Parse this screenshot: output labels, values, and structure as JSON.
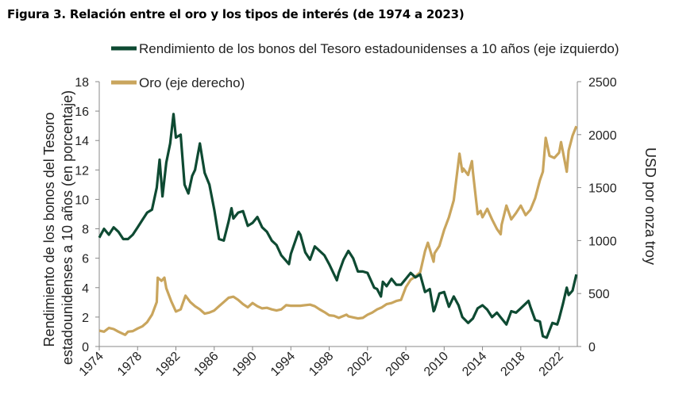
{
  "figure_title": "Figura 3. Relación entre el oro y los tipos de interés (de 1974 a 2023)",
  "chart_data": {
    "type": "line",
    "title": "Figura 3. Relación entre el oro y los tipos de interés (de 1974 a 2023)",
    "xlabel": "",
    "xlim": [
      1974,
      2023.9
    ],
    "x_ticks": [
      "1974",
      "1978",
      "1982",
      "1986",
      "1990",
      "1994",
      "1998",
      "2002",
      "2006",
      "2010",
      "2014",
      "2018",
      "2022"
    ],
    "y_left": {
      "label": "Rendimiento de los bonos del Tesoro estadounidenses a 10 años (en porcentaje)",
      "lim": [
        0,
        18
      ],
      "ticks": [
        "0",
        "2",
        "4",
        "6",
        "8",
        "10",
        "12",
        "14",
        "16",
        "18"
      ]
    },
    "y_right": {
      "label": "USD por onza troy",
      "lim": [
        0,
        2500
      ],
      "ticks": [
        "0",
        "500",
        "1000",
        "1500",
        "2000",
        "2500"
      ]
    },
    "legend_position": "top",
    "series": [
      {
        "name": "Rendimiento de los bonos del Tesoro estadounidenses a 10 años (eje izquierdo)",
        "axis": "left",
        "color": "#0e4a32",
        "points": [
          [
            1974,
            7.4
          ],
          [
            1974.5,
            8.0
          ],
          [
            1975,
            7.6
          ],
          [
            1975.5,
            8.1
          ],
          [
            1976,
            7.8
          ],
          [
            1976.5,
            7.3
          ],
          [
            1977,
            7.3
          ],
          [
            1977.5,
            7.6
          ],
          [
            1978,
            8.1
          ],
          [
            1978.5,
            8.6
          ],
          [
            1979,
            9.1
          ],
          [
            1979.5,
            9.3
          ],
          [
            1980,
            10.8
          ],
          [
            1980.3,
            12.7
          ],
          [
            1980.6,
            10.2
          ],
          [
            1981,
            12.5
          ],
          [
            1981.4,
            13.8
          ],
          [
            1981.75,
            15.8
          ],
          [
            1982,
            14.2
          ],
          [
            1982.5,
            14.4
          ],
          [
            1982.9,
            11.0
          ],
          [
            1983.3,
            10.4
          ],
          [
            1983.7,
            11.6
          ],
          [
            1984,
            12.0
          ],
          [
            1984.5,
            13.8
          ],
          [
            1985,
            11.8
          ],
          [
            1985.5,
            11.0
          ],
          [
            1986,
            9.3
          ],
          [
            1986.5,
            7.3
          ],
          [
            1987,
            7.2
          ],
          [
            1987.5,
            8.5
          ],
          [
            1987.8,
            9.4
          ],
          [
            1988,
            8.7
          ],
          [
            1988.5,
            9.1
          ],
          [
            1989,
            9.2
          ],
          [
            1989.5,
            8.2
          ],
          [
            1990,
            8.4
          ],
          [
            1990.5,
            8.8
          ],
          [
            1991,
            8.1
          ],
          [
            1991.5,
            7.8
          ],
          [
            1992,
            7.2
          ],
          [
            1992.5,
            6.9
          ],
          [
            1993,
            6.2
          ],
          [
            1993.8,
            5.6
          ],
          [
            1994,
            6.3
          ],
          [
            1994.8,
            7.8
          ],
          [
            1995,
            7.6
          ],
          [
            1995.5,
            6.4
          ],
          [
            1996,
            5.9
          ],
          [
            1996.5,
            6.8
          ],
          [
            1997,
            6.5
          ],
          [
            1997.5,
            6.2
          ],
          [
            1998,
            5.6
          ],
          [
            1998.8,
            4.5
          ],
          [
            1999,
            5.0
          ],
          [
            1999.5,
            5.9
          ],
          [
            2000,
            6.5
          ],
          [
            2000.5,
            6.0
          ],
          [
            2001,
            5.1
          ],
          [
            2001.5,
            5.1
          ],
          [
            2002,
            5.0
          ],
          [
            2002.7,
            4.0
          ],
          [
            2003,
            3.9
          ],
          [
            2003.4,
            3.4
          ],
          [
            2003.6,
            4.4
          ],
          [
            2004,
            4.1
          ],
          [
            2004.5,
            4.6
          ],
          [
            2005,
            4.2
          ],
          [
            2005.5,
            4.2
          ],
          [
            2006,
            4.6
          ],
          [
            2006.5,
            5.0
          ],
          [
            2007,
            4.7
          ],
          [
            2007.5,
            4.9
          ],
          [
            2008,
            3.7
          ],
          [
            2008.5,
            3.9
          ],
          [
            2008.9,
            2.4
          ],
          [
            2009,
            2.5
          ],
          [
            2009.5,
            3.6
          ],
          [
            2010,
            3.7
          ],
          [
            2010.5,
            2.7
          ],
          [
            2011,
            3.4
          ],
          [
            2011.5,
            2.8
          ],
          [
            2011.9,
            2.0
          ],
          [
            2012.5,
            1.6
          ],
          [
            2013,
            1.9
          ],
          [
            2013.5,
            2.6
          ],
          [
            2014,
            2.8
          ],
          [
            2014.5,
            2.5
          ],
          [
            2015,
            2.0
          ],
          [
            2015.5,
            2.3
          ],
          [
            2016,
            1.9
          ],
          [
            2016.5,
            1.5
          ],
          [
            2017,
            2.4
          ],
          [
            2017.5,
            2.3
          ],
          [
            2018,
            2.6
          ],
          [
            2018.8,
            3.1
          ],
          [
            2019,
            2.7
          ],
          [
            2019.5,
            1.8
          ],
          [
            2020,
            1.7
          ],
          [
            2020.3,
            0.7
          ],
          [
            2020.7,
            0.6
          ],
          [
            2021,
            1.1
          ],
          [
            2021.3,
            1.6
          ],
          [
            2021.8,
            1.5
          ],
          [
            2022,
            1.9
          ],
          [
            2022.4,
            2.9
          ],
          [
            2022.8,
            4.0
          ],
          [
            2023,
            3.5
          ],
          [
            2023.4,
            3.8
          ],
          [
            2023.8,
            4.9
          ]
        ]
      },
      {
        "name": "Oro (eje derecho)",
        "axis": "right",
        "color": "#c9a55d",
        "points": [
          [
            1974,
            150
          ],
          [
            1974.5,
            140
          ],
          [
            1975,
            175
          ],
          [
            1975.5,
            165
          ],
          [
            1976,
            140
          ],
          [
            1976.7,
            110
          ],
          [
            1977,
            140
          ],
          [
            1977.5,
            145
          ],
          [
            1978,
            170
          ],
          [
            1978.5,
            190
          ],
          [
            1979,
            230
          ],
          [
            1979.5,
            300
          ],
          [
            1980,
            420
          ],
          [
            1980.1,
            650
          ],
          [
            1980.5,
            620
          ],
          [
            1980.8,
            650
          ],
          [
            1981,
            550
          ],
          [
            1981.5,
            430
          ],
          [
            1982,
            330
          ],
          [
            1982.5,
            350
          ],
          [
            1982.8,
            430
          ],
          [
            1983,
            480
          ],
          [
            1983.5,
            420
          ],
          [
            1984,
            380
          ],
          [
            1984.5,
            350
          ],
          [
            1985,
            310
          ],
          [
            1985.5,
            320
          ],
          [
            1986,
            340
          ],
          [
            1986.5,
            380
          ],
          [
            1987,
            420
          ],
          [
            1987.5,
            460
          ],
          [
            1988,
            470
          ],
          [
            1988.5,
            440
          ],
          [
            1989,
            400
          ],
          [
            1989.5,
            370
          ],
          [
            1990,
            410
          ],
          [
            1990.5,
            380
          ],
          [
            1991,
            360
          ],
          [
            1991.5,
            365
          ],
          [
            1992,
            350
          ],
          [
            1992.5,
            340
          ],
          [
            1993,
            350
          ],
          [
            1993.5,
            390
          ],
          [
            1994,
            385
          ],
          [
            1995,
            385
          ],
          [
            1996,
            395
          ],
          [
            1996.5,
            380
          ],
          [
            1997,
            350
          ],
          [
            1997.5,
            325
          ],
          [
            1998,
            295
          ],
          [
            1998.5,
            290
          ],
          [
            1999,
            270
          ],
          [
            1999.8,
            300
          ],
          [
            2000,
            285
          ],
          [
            2000.5,
            275
          ],
          [
            2001,
            265
          ],
          [
            2001.5,
            270
          ],
          [
            2002,
            300
          ],
          [
            2002.5,
            320
          ],
          [
            2003,
            350
          ],
          [
            2003.5,
            370
          ],
          [
            2004,
            400
          ],
          [
            2004.5,
            410
          ],
          [
            2005,
            430
          ],
          [
            2005.5,
            440
          ],
          [
            2006,
            560
          ],
          [
            2006.5,
            630
          ],
          [
            2007,
            660
          ],
          [
            2007.5,
            700
          ],
          [
            2008,
            900
          ],
          [
            2008.3,
            980
          ],
          [
            2008.9,
            800
          ],
          [
            2009,
            880
          ],
          [
            2009.5,
            950
          ],
          [
            2010,
            1100
          ],
          [
            2010.5,
            1220
          ],
          [
            2011,
            1380
          ],
          [
            2011.6,
            1820
          ],
          [
            2011.9,
            1650
          ],
          [
            2012,
            1680
          ],
          [
            2012.5,
            1620
          ],
          [
            2012.9,
            1750
          ],
          [
            2013,
            1650
          ],
          [
            2013.5,
            1250
          ],
          [
            2013.8,
            1280
          ],
          [
            2014,
            1220
          ],
          [
            2014.5,
            1300
          ],
          [
            2015,
            1200
          ],
          [
            2015.5,
            1110
          ],
          [
            2015.9,
            1060
          ],
          [
            2016,
            1150
          ],
          [
            2016.5,
            1330
          ],
          [
            2017,
            1200
          ],
          [
            2017.5,
            1260
          ],
          [
            2018,
            1330
          ],
          [
            2018.5,
            1240
          ],
          [
            2019,
            1290
          ],
          [
            2019.5,
            1400
          ],
          [
            2020,
            1570
          ],
          [
            2020.3,
            1650
          ],
          [
            2020.6,
            1970
          ],
          [
            2021,
            1800
          ],
          [
            2021.5,
            1780
          ],
          [
            2022,
            1830
          ],
          [
            2022.2,
            1930
          ],
          [
            2022.8,
            1650
          ],
          [
            2023,
            1850
          ],
          [
            2023.4,
            1990
          ],
          [
            2023.8,
            2080
          ]
        ]
      }
    ]
  }
}
